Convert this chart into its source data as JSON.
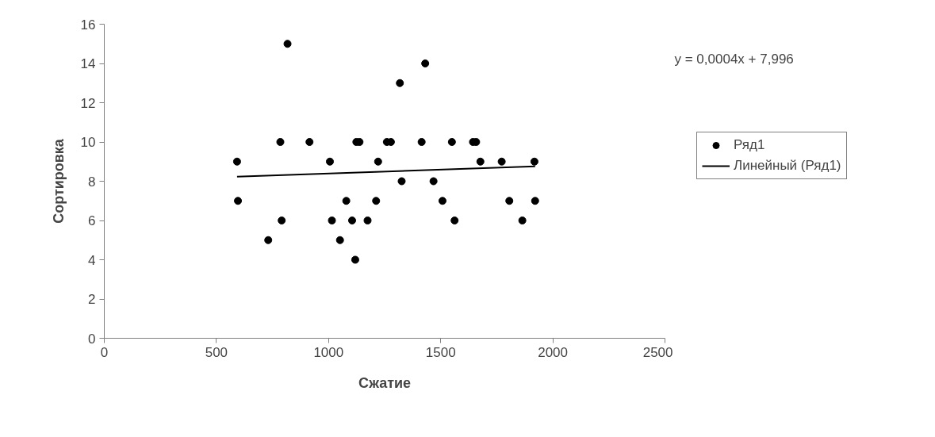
{
  "chart_data": {
    "type": "scatter",
    "xlabel": "Сжатие",
    "ylabel": "Сортировка",
    "xlim": [
      0,
      2500
    ],
    "xticks": [
      0,
      500,
      1000,
      1500,
      2000,
      2500
    ],
    "ylim": [
      0,
      16
    ],
    "yticks": [
      0,
      2,
      4,
      6,
      8,
      10,
      12,
      14,
      16
    ],
    "grid": false,
    "legend": "right",
    "marker": "circle",
    "annotations": [
      "y = 0,0004x + 7,996"
    ],
    "series": [
      {
        "name": "Ряд1",
        "color": "#000000",
        "x": [
          592,
          596,
          731,
          785,
          791,
          817,
          915,
          1006,
          1015,
          1051,
          1079,
          1105,
          1119,
          1124,
          1138,
          1174,
          1212,
          1221,
          1260,
          1278,
          1318,
          1326,
          1415,
          1431,
          1468,
          1508,
          1550,
          1562,
          1644,
          1658,
          1677,
          1772,
          1806,
          1864,
          1918,
          1921
        ],
        "values": [
          9,
          7,
          5,
          10,
          6,
          15,
          10,
          9,
          6,
          5,
          7,
          6,
          4,
          10,
          10,
          6,
          7,
          9,
          10,
          10,
          13,
          8,
          10,
          14,
          8,
          7,
          10,
          6,
          10,
          10,
          9,
          9,
          7,
          6,
          9,
          7
        ]
      },
      {
        "name": "Линейный (Ряд1)",
        "color": "#000000",
        "type": "line",
        "marker": "none",
        "line_style": "solid",
        "x": [
          592,
          1921
        ],
        "values": [
          8.23,
          8.76
        ]
      }
    ]
  }
}
